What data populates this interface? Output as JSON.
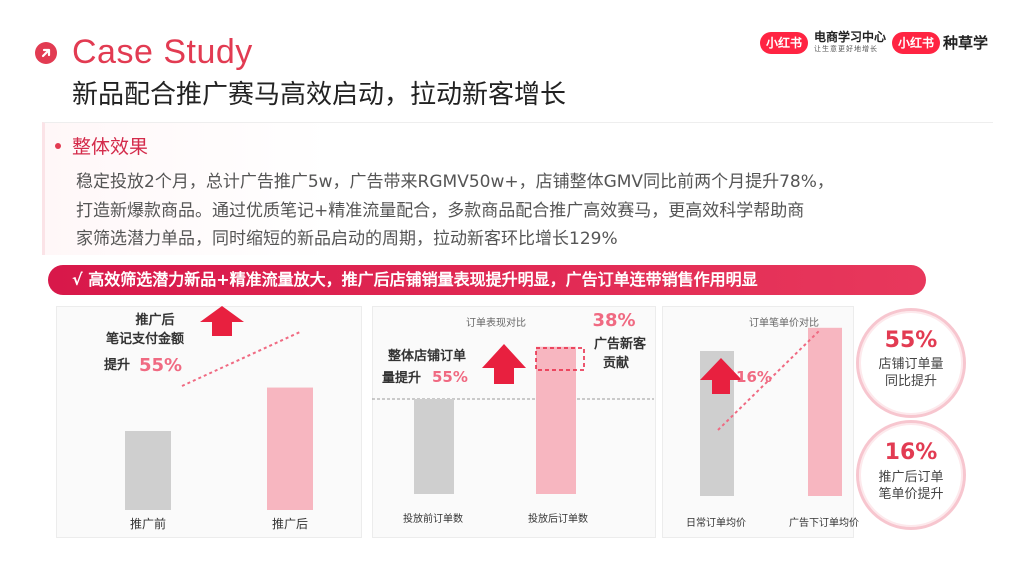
{
  "header": {
    "title": "Case Study",
    "subtitle": "新品配合推广赛马高效启动，拉动新客增长"
  },
  "logos": {
    "logo1_badge": "小红书",
    "logo1_text": "电商学习中心",
    "logo1_sub": "让生意更好地增长",
    "logo2_badge": "小红书",
    "logo2_text": "种草学"
  },
  "section": {
    "title": "整体效果",
    "lines": [
      "稳定投放2个月，总计广告推广5w，广告带来RGMV50w+，店铺整体GMV同比前两个月提升78%，",
      "打造新爆款商品。通过优质笔记+精准流量配合，多款商品配合推广高效赛马，更高效科学帮助商",
      "家筛选潜力单品，同时缩短的新品启动的周期，拉动新客环比增长129%"
    ]
  },
  "banner": {
    "text": "√ 高效筛选潜力新品+精准流量放大，推广后店铺销量表现提升明显，广告订单连带销售作用明显"
  },
  "colors": {
    "accent": "#e23b52",
    "grey_bar": "#cfcfcf",
    "pink_bar": "#f7b6c0",
    "arrow": "#e8203f"
  },
  "chart_data": [
    {
      "type": "bar",
      "categories": [
        "推广前",
        "推广后"
      ],
      "values": [
        100,
        155
      ],
      "annotation_lines": [
        "推广后",
        "笔记支付金额"
      ],
      "annotation_prefix": "提升",
      "annotation_pct": "55%"
    },
    {
      "type": "bar",
      "title": "订单表现对比",
      "categories": [
        "投放前订单数",
        "投放后订单数"
      ],
      "values": [
        100,
        155
      ],
      "annotation_lines": [
        "整体店铺订单"
      ],
      "annotation_prefix": "量提升",
      "annotation_pct": "55%",
      "side_pct": "38%",
      "side_lines": [
        "广告新客",
        "贡献"
      ]
    },
    {
      "type": "bar",
      "title": "订单笔单价对比",
      "categories": [
        "日常订单均价",
        "广告下订单均价"
      ],
      "values": [
        100,
        116
      ],
      "annotation_pct": "16%"
    }
  ],
  "callouts": [
    {
      "pct": "55%",
      "lines": [
        "店铺订单量",
        "同比提升"
      ]
    },
    {
      "pct": "16%",
      "lines": [
        "推广后订单",
        "笔单价提升"
      ]
    }
  ]
}
